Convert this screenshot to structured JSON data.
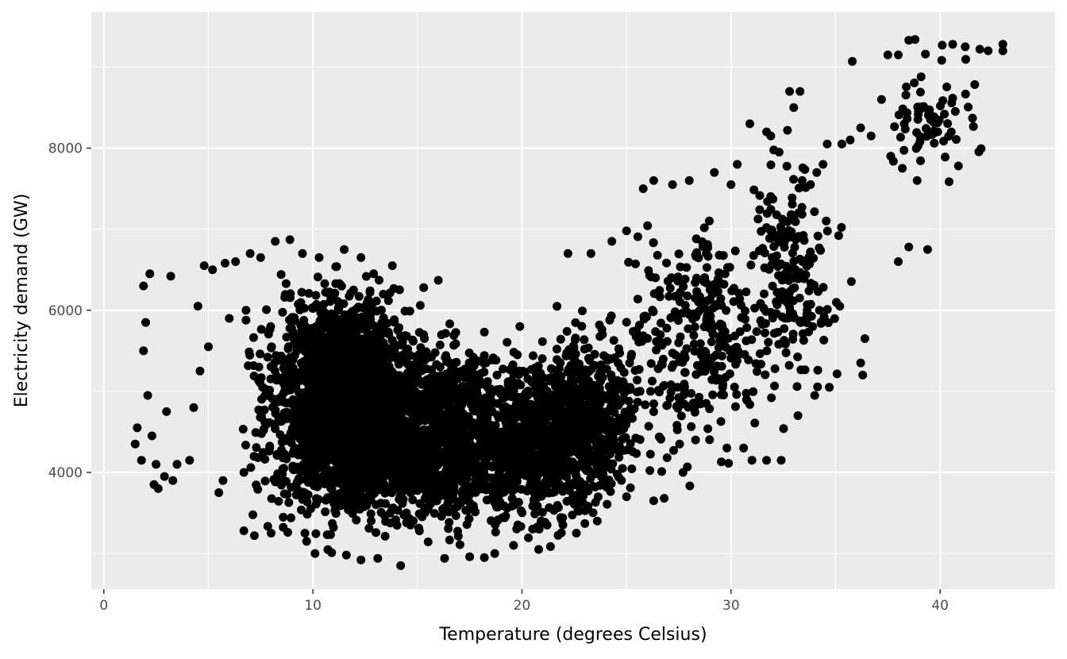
{
  "chart_data": {
    "type": "scatter",
    "title": "",
    "xlabel": "Temperature (degrees Celsius)",
    "ylabel": "Electricity demand (GW)",
    "xlim": [
      -0.6,
      45.5
    ],
    "ylim": [
      2560,
      9680
    ],
    "x_ticks": [
      0,
      10,
      20,
      30,
      40
    ],
    "y_ticks": [
      4000,
      6000,
      8000
    ],
    "x_minor_ticks": [
      5,
      15,
      25,
      35
    ],
    "y_minor_ticks": [
      3000,
      5000,
      7000,
      9000
    ],
    "grid": true,
    "legend": "none",
    "point_color": "#000000",
    "panel_background": "#ebebeb",
    "grid_color": "#ffffff",
    "series": [
      {
        "clusters": [
          {
            "x_range": [
              6,
              16
            ],
            "y_range": [
              2950,
              6700
            ],
            "count": 1400
          },
          {
            "x_range": [
              9,
              15
            ],
            "y_range": [
              3100,
              6600
            ],
            "count": 1200
          },
          {
            "x_range": [
              12,
              20
            ],
            "y_range": [
              2950,
              6000
            ],
            "count": 1000
          },
          {
            "x_range": [
              16,
              25
            ],
            "y_range": [
              3000,
              5800
            ],
            "count": 900
          },
          {
            "x_range": [
              20,
              27
            ],
            "y_range": [
              3200,
              6200
            ],
            "count": 400
          },
          {
            "x_range": [
              24,
              33
            ],
            "y_range": [
              3700,
              7600
            ],
            "count": 300
          },
          {
            "x_range": [
              30,
              36
            ],
            "y_range": [
              4500,
              8200
            ],
            "count": 200
          },
          {
            "x_range": [
              36,
              43
            ],
            "y_range": [
              7400,
              9300
            ],
            "count": 70
          }
        ],
        "outliers": [
          [
            1.5,
            4350
          ],
          [
            1.6,
            4550
          ],
          [
            1.8,
            4150
          ],
          [
            1.9,
            5500
          ],
          [
            1.9,
            6300
          ],
          [
            2.0,
            5850
          ],
          [
            2.1,
            4950
          ],
          [
            2.2,
            6450
          ],
          [
            2.3,
            4450
          ],
          [
            2.4,
            3850
          ],
          [
            2.5,
            4100
          ],
          [
            2.6,
            3800
          ],
          [
            2.9,
            3950
          ],
          [
            3.0,
            4750
          ],
          [
            3.2,
            6420
          ],
          [
            3.3,
            3900
          ],
          [
            3.5,
            4100
          ],
          [
            4.1,
            4150
          ],
          [
            4.3,
            4800
          ],
          [
            4.5,
            6050
          ],
          [
            4.6,
            5250
          ],
          [
            4.8,
            6550
          ],
          [
            5.0,
            5550
          ],
          [
            5.2,
            6500
          ],
          [
            5.5,
            3750
          ],
          [
            5.8,
            6580
          ],
          [
            6.0,
            5900
          ],
          [
            6.3,
            6600
          ],
          [
            6.7,
            4000
          ],
          [
            7.0,
            6700
          ],
          [
            7.5,
            6650
          ],
          [
            8.2,
            6850
          ],
          [
            8.9,
            6870
          ],
          [
            9.5,
            6700
          ],
          [
            10.3,
            6650
          ],
          [
            11.5,
            6750
          ],
          [
            12.3,
            6650
          ],
          [
            13.8,
            6550
          ],
          [
            15.3,
            6280
          ],
          [
            16.0,
            6370
          ],
          [
            18.2,
            5730
          ],
          [
            19.9,
            5800
          ],
          [
            22.2,
            6700
          ],
          [
            23.3,
            6700
          ],
          [
            24.3,
            6850
          ],
          [
            25.0,
            6980
          ],
          [
            25.8,
            7500
          ],
          [
            26.3,
            7600
          ],
          [
            27.2,
            7550
          ],
          [
            28.0,
            7600
          ],
          [
            29.2,
            7700
          ],
          [
            30.0,
            7550
          ],
          [
            30.3,
            7800
          ],
          [
            30.9,
            8300
          ],
          [
            31.7,
            8200
          ],
          [
            31.9,
            8150
          ],
          [
            32.3,
            7950
          ],
          [
            32.8,
            8700
          ],
          [
            33.3,
            8700
          ],
          [
            33.0,
            8500
          ],
          [
            32.7,
            8220
          ],
          [
            33.4,
            7600
          ],
          [
            33.8,
            7550
          ],
          [
            34.1,
            7700
          ],
          [
            34.6,
            8050
          ],
          [
            34.4,
            7800
          ],
          [
            35.3,
            8050
          ],
          [
            35.7,
            8100
          ],
          [
            35.8,
            9070
          ],
          [
            36.2,
            8250
          ],
          [
            36.7,
            8150
          ],
          [
            37.2,
            8600
          ],
          [
            37.5,
            9150
          ],
          [
            38.0,
            9150
          ],
          [
            38.5,
            9330
          ],
          [
            38.8,
            9340
          ],
          [
            39.3,
            9160
          ],
          [
            40.1,
            9270
          ],
          [
            40.6,
            9280
          ],
          [
            41.2,
            9250
          ],
          [
            41.9,
            9220
          ],
          [
            42.3,
            9200
          ],
          [
            43.0,
            9280
          ],
          [
            43.0,
            9200
          ],
          [
            38.9,
            7600
          ],
          [
            39.4,
            6750
          ],
          [
            38.5,
            6780
          ],
          [
            38.0,
            6600
          ],
          [
            36.4,
            5650
          ],
          [
            36.3,
            5200
          ],
          [
            36.2,
            5350
          ],
          [
            35.2,
            6050
          ],
          [
            34.7,
            5050
          ],
          [
            34.0,
            4950
          ],
          [
            33.2,
            4700
          ],
          [
            32.4,
            4150
          ],
          [
            31.7,
            4150
          ],
          [
            31.0,
            4150
          ],
          [
            30.6,
            4300
          ],
          [
            29.8,
            4300
          ],
          [
            28.3,
            4400
          ],
          [
            27.7,
            4000
          ],
          [
            26.8,
            3680
          ],
          [
            26.3,
            3650
          ],
          [
            25.0,
            3700
          ],
          [
            23.6,
            3400
          ],
          [
            22.6,
            3250
          ],
          [
            21.2,
            3350
          ],
          [
            20.8,
            3050
          ],
          [
            19.6,
            3100
          ],
          [
            18.7,
            3000
          ],
          [
            18.2,
            2950
          ],
          [
            17.5,
            2960
          ],
          [
            16.3,
            2940
          ],
          [
            14.2,
            2850
          ],
          [
            13.1,
            2940
          ],
          [
            12.3,
            2920
          ],
          [
            11.6,
            2980
          ],
          [
            10.9,
            3010
          ],
          [
            10.1,
            3000
          ],
          [
            9.7,
            3150
          ],
          [
            8.8,
            3260
          ],
          [
            8.0,
            3250
          ],
          [
            7.2,
            3220
          ],
          [
            6.7,
            3280
          ],
          [
            5.7,
            3900
          ]
        ]
      }
    ]
  }
}
